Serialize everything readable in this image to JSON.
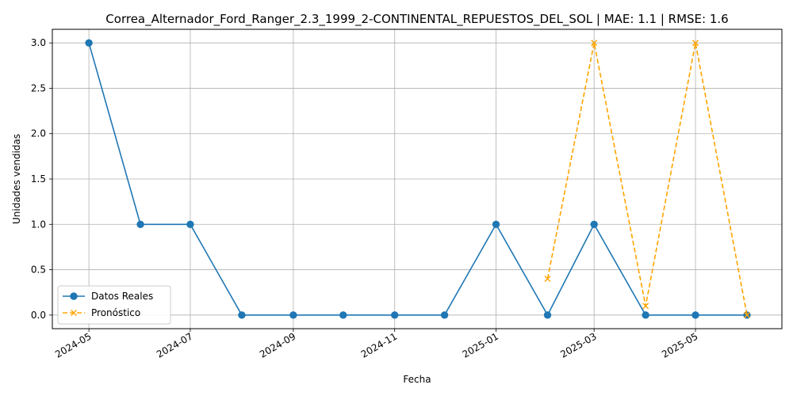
{
  "chart_data": {
    "type": "line",
    "title": "Correa_Alternador_Ford_Ranger_2.3_1999_2-CONTINENTAL_REPUESTOS_DEL_SOL | MAE: 1.1 | RMSE: 1.6",
    "xlabel": "Fecha",
    "ylabel": "Unidades vendidas",
    "ylim": [
      -0.15,
      3.15
    ],
    "xlim": [
      "2024-04-09",
      "2025-06-22"
    ],
    "x_ticks": [
      "2024-05",
      "2024-07",
      "2024-09",
      "2024-11",
      "2025-01",
      "2025-03",
      "2025-05"
    ],
    "y_ticks": [
      "0.0",
      "0.5",
      "1.0",
      "1.5",
      "2.0",
      "2.5",
      "3.0"
    ],
    "grid": true,
    "legend_position": "lower-left",
    "series": [
      {
        "name": "Datos Reales",
        "color": "#1f77b4",
        "line_style": "solid",
        "marker": "circle",
        "x": [
          "2024-05-01",
          "2024-06-01",
          "2024-07-01",
          "2024-08-01",
          "2024-09-01",
          "2024-10-01",
          "2024-11-01",
          "2024-12-01",
          "2025-01-01",
          "2025-02-01",
          "2025-03-01",
          "2025-04-01",
          "2025-05-01",
          "2025-06-01"
        ],
        "values": [
          3,
          1,
          1,
          0,
          0,
          0,
          0,
          0,
          1,
          0,
          1,
          0,
          0,
          0
        ]
      },
      {
        "name": "Pronóstico",
        "color": "#ffa500",
        "line_style": "dashed",
        "marker": "x",
        "x": [
          "2025-02-01",
          "2025-03-01",
          "2025-04-01",
          "2025-05-01",
          "2025-06-01"
        ],
        "values": [
          0.4,
          3.0,
          0.1,
          3.0,
          0.0
        ]
      }
    ]
  }
}
